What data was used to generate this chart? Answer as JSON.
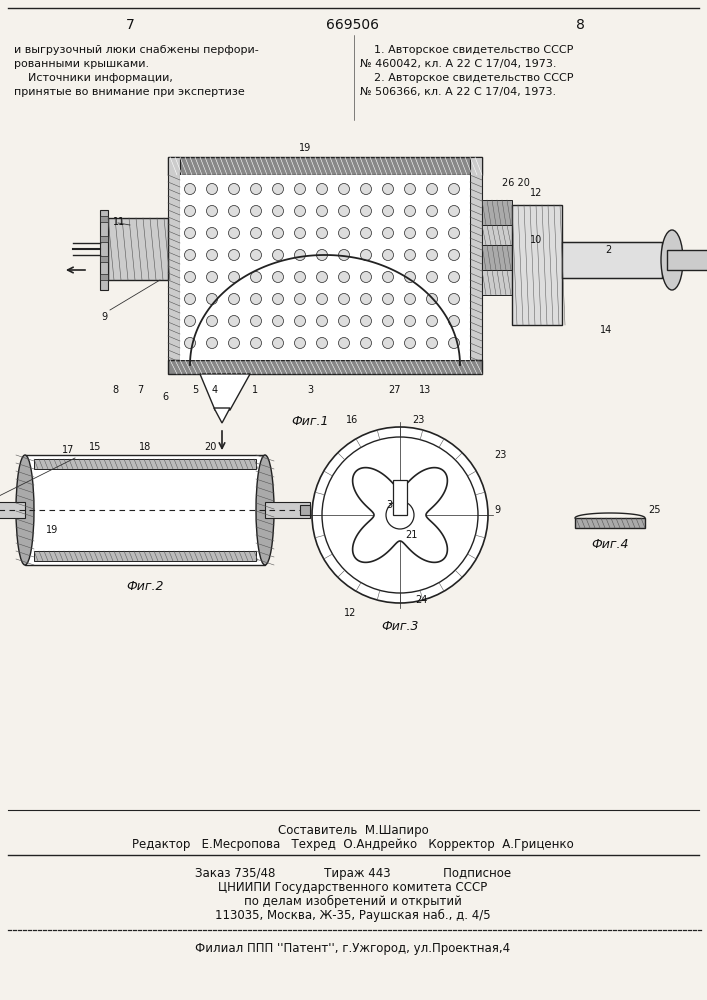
{
  "page_color": "#f5f2ec",
  "line_color": "#222222",
  "text_color": "#111111",
  "page_number_left": "7",
  "page_number_center": "669506",
  "page_number_right": "8",
  "left_col_lines": [
    "и выгрузочный люки снабжены перфори-",
    "рованными крышками.",
    "    Источники информации,",
    "принятые во внимание при экспертизе"
  ],
  "right_col_lines": [
    "    1. Авторское свидетельство СССР",
    "№ 460042, кл. А 22 С 17/04, 1973.",
    "    2. Авторское свидетельство СССР",
    "№ 506366, кл. А 22 С 17/04, 1973."
  ],
  "fig1_caption": "Фиг.1",
  "fig2_caption": "Фиг.2",
  "fig3_caption": "Фиг.3",
  "fig4_caption": "Фиг.4",
  "bottom_line1": "Составитель  М.Шапиро",
  "bottom_line2": "Редактор   Е.Месропова   Техред  О.Андрейко   Корректор  А.Гриценко",
  "order_line": "Заказ 735/48             Тираж 443              Подписное",
  "tsniipi_lines": [
    "ЦНИИПИ Государственного комитета СССР",
    "по делам изобретений и открытий",
    "113035, Москва, Ж-35, Раушская наб., д. 4/5"
  ],
  "filial_line": "Филиал ППП ''Патент'', г.Ужгород, ул.Проектная,4"
}
